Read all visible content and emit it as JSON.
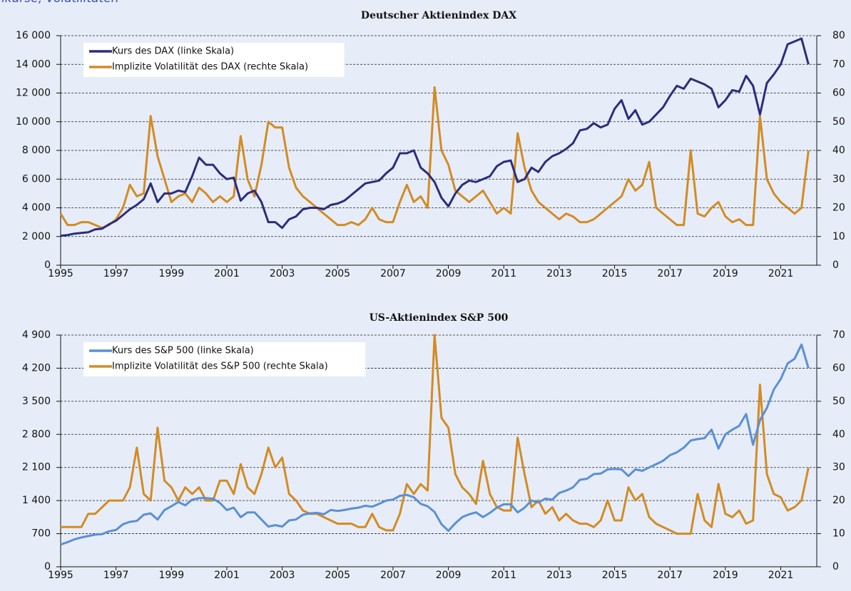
{
  "header": {
    "title": "nkurse, Volatilitäten"
  },
  "chart_data": [
    {
      "type": "line",
      "title": "Deutscher Aktienindex DAX",
      "legend": "upper left",
      "grid": true,
      "x": [
        1995,
        1995.25,
        1995.5,
        1995.75,
        1996,
        1996.25,
        1996.5,
        1996.75,
        1997,
        1997.25,
        1997.5,
        1997.75,
        1998,
        1998.25,
        1998.5,
        1998.75,
        1999,
        1999.25,
        1999.5,
        1999.75,
        2000,
        2000.25,
        2000.5,
        2000.75,
        2001,
        2001.25,
        2001.5,
        2001.75,
        2002,
        2002.25,
        2002.5,
        2002.75,
        2003,
        2003.25,
        2003.5,
        2003.75,
        2004,
        2004.25,
        2004.5,
        2004.75,
        2005,
        2005.25,
        2005.5,
        2005.75,
        2006,
        2006.25,
        2006.5,
        2006.75,
        2007,
        2007.25,
        2007.5,
        2007.75,
        2008,
        2008.25,
        2008.5,
        2008.75,
        2009,
        2009.25,
        2009.5,
        2009.75,
        2010,
        2010.25,
        2010.5,
        2010.75,
        2011,
        2011.25,
        2011.5,
        2011.75,
        2012,
        2012.25,
        2012.5,
        2012.75,
        2013,
        2013.25,
        2013.5,
        2013.75,
        2014,
        2014.25,
        2014.5,
        2014.75,
        2015,
        2015.25,
        2015.5,
        2015.75,
        2016,
        2016.25,
        2016.5,
        2016.75,
        2017,
        2017.25,
        2017.5,
        2017.75,
        2018,
        2018.25,
        2018.5,
        2018.75,
        2019,
        2019.25,
        2019.5,
        2019.75,
        2020,
        2020.25,
        2020.5,
        2020.75,
        2021,
        2021.25,
        2021.5,
        2021.75,
        2022
      ],
      "xlim": [
        1995,
        2022.3
      ],
      "xticks": [
        1995,
        1997,
        1999,
        2001,
        2003,
        2005,
        2007,
        2009,
        2011,
        2013,
        2015,
        2017,
        2019,
        2021
      ],
      "ylim": [
        0,
        16000
      ],
      "yticks": [
        0,
        {
          "value": 2000,
          "label": "2 000"
        },
        {
          "value": 4000,
          "label": "4 000"
        },
        {
          "value": 6000,
          "label": "6 000"
        },
        {
          "value": 8000,
          "label": "8 000"
        },
        {
          "value": 10000,
          "label": "10 000"
        },
        {
          "value": 12000,
          "label": "12 000"
        },
        {
          "value": 14000,
          "label": "14 000"
        },
        {
          "value": 16000,
          "label": "16 000"
        }
      ],
      "y2lim": [
        0,
        80
      ],
      "y2ticks": [
        0,
        10,
        20,
        30,
        40,
        50,
        60,
        70,
        80
      ],
      "series": [
        {
          "name": "Kurs des DAX (linke Skala)",
          "color": "#2b2d7c",
          "axis": "y",
          "values": [
            2050,
            2100,
            2200,
            2250,
            2300,
            2500,
            2550,
            2850,
            3100,
            3500,
            3900,
            4200,
            4600,
            5700,
            4400,
            5000,
            5000,
            5200,
            5100,
            6200,
            7500,
            7000,
            7000,
            6400,
            6000,
            6100,
            4500,
            5000,
            5200,
            4400,
            3000,
            3000,
            2600,
            3200,
            3400,
            3900,
            4000,
            4000,
            3900,
            4200,
            4300,
            4500,
            4900,
            5300,
            5700,
            5800,
            5900,
            6400,
            6800,
            7800,
            7800,
            8000,
            6800,
            6400,
            5800,
            4700,
            4100,
            5000,
            5600,
            5900,
            5800,
            6000,
            6200,
            6900,
            7200,
            7300,
            5800,
            6000,
            6800,
            6500,
            7200,
            7600,
            7800,
            8100,
            8500,
            9400,
            9500,
            9900,
            9600,
            9800,
            10900,
            11500,
            10200,
            10800,
            9800,
            10000,
            10500,
            11000,
            11800,
            12500,
            12300,
            13000,
            12800,
            12600,
            12300,
            11000,
            11500,
            12200,
            12100,
            13200,
            12500,
            10500,
            12700,
            13300,
            14000,
            15400,
            15600,
            15800,
            14000
          ]
        },
        {
          "name": "Implizite Volatilität des DAX (rechte Skala)",
          "color": "#d38b23",
          "axis": "y2",
          "values": [
            18,
            14,
            14,
            15,
            15,
            14,
            13,
            14,
            16,
            20,
            28,
            24,
            25,
            52,
            38,
            30,
            22,
            24,
            25,
            22,
            27,
            25,
            22,
            24,
            22,
            24,
            45,
            30,
            24,
            35,
            50,
            48,
            48,
            34,
            27,
            24,
            22,
            20,
            18,
            16,
            14,
            14,
            15,
            14,
            16,
            20,
            16,
            15,
            15,
            22,
            28,
            22,
            24,
            20,
            62,
            40,
            35,
            26,
            24,
            22,
            24,
            26,
            22,
            18,
            20,
            18,
            46,
            34,
            26,
            22,
            20,
            18,
            16,
            18,
            17,
            15,
            15,
            16,
            18,
            20,
            22,
            24,
            30,
            26,
            28,
            36,
            20,
            18,
            16,
            14,
            14,
            40,
            18,
            17,
            20,
            22,
            17,
            15,
            16,
            14,
            14,
            52,
            30,
            25,
            22,
            20,
            18,
            20,
            40
          ]
        }
      ]
    },
    {
      "type": "line",
      "title": "US-Aktienindex S&P 500",
      "legend": "upper left",
      "grid": true,
      "x": [
        1995,
        1995.25,
        1995.5,
        1995.75,
        1996,
        1996.25,
        1996.5,
        1996.75,
        1997,
        1997.25,
        1997.5,
        1997.75,
        1998,
        1998.25,
        1998.5,
        1998.75,
        1999,
        1999.25,
        1999.5,
        1999.75,
        2000,
        2000.25,
        2000.5,
        2000.75,
        2001,
        2001.25,
        2001.5,
        2001.75,
        2002,
        2002.25,
        2002.5,
        2002.75,
        2003,
        2003.25,
        2003.5,
        2003.75,
        2004,
        2004.25,
        2004.5,
        2004.75,
        2005,
        2005.25,
        2005.5,
        2005.75,
        2006,
        2006.25,
        2006.5,
        2006.75,
        2007,
        2007.25,
        2007.5,
        2007.75,
        2008,
        2008.25,
        2008.5,
        2008.75,
        2009,
        2009.25,
        2009.5,
        2009.75,
        2010,
        2010.25,
        2010.5,
        2010.75,
        2011,
        2011.25,
        2011.5,
        2011.75,
        2012,
        2012.25,
        2012.5,
        2012.75,
        2013,
        2013.25,
        2013.5,
        2013.75,
        2014,
        2014.25,
        2014.5,
        2014.75,
        2015,
        2015.25,
        2015.5,
        2015.75,
        2016,
        2016.25,
        2016.5,
        2016.75,
        2017,
        2017.25,
        2017.5,
        2017.75,
        2018,
        2018.25,
        2018.5,
        2018.75,
        2019,
        2019.25,
        2019.5,
        2019.75,
        2020,
        2020.25,
        2020.5,
        2020.75,
        2021,
        2021.25,
        2021.5,
        2021.75,
        2022
      ],
      "xlim": [
        1995,
        2022.3
      ],
      "xticks": [
        1995,
        1997,
        1999,
        2001,
        2003,
        2005,
        2007,
        2009,
        2011,
        2013,
        2015,
        2017,
        2019,
        2021
      ],
      "ylim": [
        0,
        4900
      ],
      "yticks": [
        0,
        700,
        {
          "value": 1400,
          "label": "1 400"
        },
        {
          "value": 2100,
          "label": "2 100"
        },
        {
          "value": 2800,
          "label": "2 800"
        },
        {
          "value": 3500,
          "label": "3 500"
        },
        {
          "value": 4200,
          "label": "4 200"
        },
        {
          "value": 4900,
          "label": "4 900"
        }
      ],
      "y2lim": [
        0,
        70
      ],
      "y2ticks": [
        0,
        10,
        20,
        30,
        40,
        50,
        60,
        70
      ],
      "series": [
        {
          "name": "Kurs des S&P 500 (linke Skala)",
          "color": "#5b8fd4",
          "axis": "y",
          "values": [
            470,
            520,
            580,
            620,
            650,
            680,
            690,
            750,
            780,
            900,
            950,
            970,
            1100,
            1130,
            1000,
            1200,
            1280,
            1370,
            1300,
            1420,
            1450,
            1450,
            1440,
            1350,
            1200,
            1250,
            1050,
            1150,
            1150,
            1000,
            850,
            880,
            850,
            980,
            1000,
            1100,
            1130,
            1140,
            1110,
            1200,
            1180,
            1200,
            1230,
            1250,
            1290,
            1270,
            1330,
            1400,
            1420,
            1500,
            1520,
            1470,
            1330,
            1280,
            1160,
            900,
            760,
            920,
            1050,
            1110,
            1150,
            1050,
            1140,
            1250,
            1320,
            1320,
            1150,
            1250,
            1400,
            1360,
            1440,
            1420,
            1560,
            1610,
            1680,
            1840,
            1860,
            1960,
            1970,
            2060,
            2070,
            2060,
            1920,
            2060,
            2030,
            2100,
            2170,
            2240,
            2360,
            2420,
            2520,
            2670,
            2700,
            2720,
            2900,
            2500,
            2800,
            2900,
            2980,
            3230,
            2580,
            3100,
            3360,
            3750,
            3970,
            4300,
            4400,
            4700,
            4200
          ]
        },
        {
          "name": "Implizite Volatilität des S&P 500 (rechte Skala)",
          "color": "#d38b23",
          "axis": "y2",
          "values": [
            12,
            12,
            12,
            12,
            16,
            16,
            18,
            20,
            20,
            20,
            24,
            36,
            22,
            20,
            42,
            26,
            24,
            20,
            24,
            22,
            24,
            20,
            20,
            26,
            26,
            22,
            31,
            24,
            22,
            28,
            36,
            30,
            33,
            22,
            20,
            17,
            16,
            16,
            15,
            14,
            13,
            13,
            13,
            12,
            12,
            16,
            12,
            11,
            11,
            16,
            25,
            22,
            25,
            23,
            70,
            45,
            42,
            28,
            24,
            22,
            19,
            32,
            22,
            18,
            17,
            17,
            39,
            28,
            18,
            20,
            16,
            18,
            14,
            16,
            14,
            13,
            13,
            12,
            14,
            20,
            14,
            14,
            24,
            20,
            22,
            15,
            13,
            12,
            11,
            10,
            10,
            10,
            22,
            14,
            12,
            25,
            16,
            15,
            17,
            13,
            14,
            55,
            28,
            22,
            21,
            17,
            18,
            20,
            30
          ]
        }
      ]
    }
  ]
}
